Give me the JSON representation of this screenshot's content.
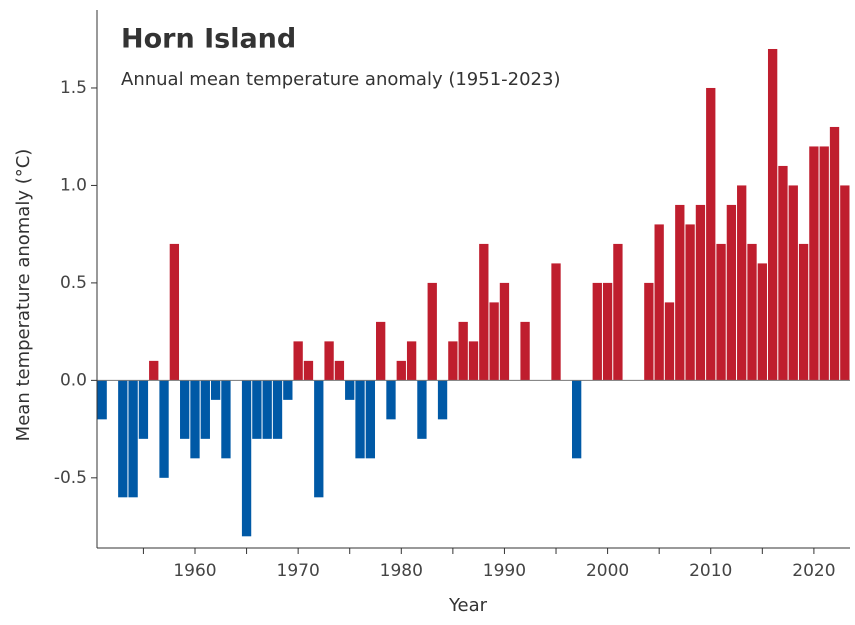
{
  "chart_data": {
    "type": "bar",
    "title": "Horn Island",
    "subtitle": "Annual mean temperature anomaly (1951-2023)",
    "xlabel": "Year",
    "ylabel": "Mean temperature anomaly (°C)",
    "x": [
      1951,
      1952,
      1953,
      1954,
      1955,
      1956,
      1957,
      1958,
      1959,
      1960,
      1961,
      1962,
      1963,
      1964,
      1965,
      1966,
      1967,
      1968,
      1969,
      1970,
      1971,
      1972,
      1973,
      1974,
      1975,
      1976,
      1977,
      1978,
      1979,
      1980,
      1981,
      1982,
      1983,
      1984,
      1985,
      1986,
      1987,
      1988,
      1989,
      1990,
      1991,
      1992,
      1993,
      1994,
      1995,
      1996,
      1997,
      1998,
      1999,
      2000,
      2001,
      2002,
      2003,
      2004,
      2005,
      2006,
      2007,
      2008,
      2009,
      2010,
      2011,
      2012,
      2013,
      2014,
      2015,
      2016,
      2017,
      2018,
      2019,
      2020,
      2021,
      2022,
      2023
    ],
    "values": [
      -0.2,
      0,
      -0.6,
      -0.6,
      -0.3,
      0.1,
      -0.5,
      0.7,
      -0.3,
      -0.4,
      -0.3,
      -0.1,
      -0.4,
      0,
      -0.8,
      -0.3,
      -0.3,
      -0.3,
      -0.1,
      0.2,
      0.1,
      -0.6,
      0.2,
      0.1,
      -0.1,
      -0.4,
      -0.4,
      0.3,
      -0.2,
      0.1,
      0.2,
      -0.3,
      0.5,
      -0.2,
      0.2,
      0.3,
      0.2,
      0.7,
      0.4,
      0.5,
      0,
      0.3,
      0,
      0,
      0.6,
      0,
      -0.4,
      0,
      0.5,
      0.5,
      0.7,
      0,
      0,
      0.5,
      0.8,
      0.4,
      0.9,
      0.8,
      0.9,
      1.5,
      0.7,
      0.9,
      1.0,
      0.7,
      0.6,
      1.7,
      1.1,
      1.0,
      0.7,
      1.2,
      1.2,
      1.3,
      1.0
    ],
    "positive_color": "#bf1e2e",
    "negative_color": "#0059a6",
    "xlim": [
      1950.5,
      2023.5
    ],
    "xticks": [
      1960,
      1970,
      1980,
      1990,
      2000,
      2010,
      2020
    ],
    "xminorticks": [
      1955,
      1965,
      1975,
      1985,
      1995,
      2005,
      2015
    ],
    "ylim": [
      -0.86,
      1.9
    ],
    "yticks": [
      -0.5,
      {
        "value": 0,
        "label": "0.0"
      },
      0.5,
      {
        "value": 1,
        "label": "1.0"
      },
      1.5
    ]
  }
}
